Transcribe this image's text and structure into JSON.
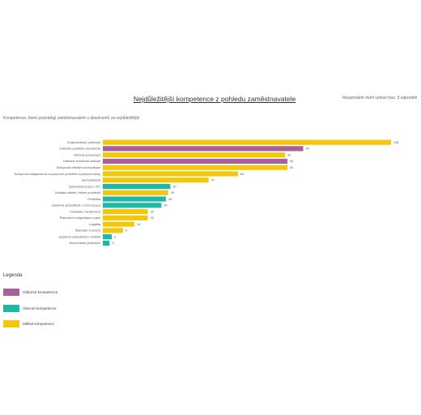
{
  "title": "Nejdůležitější kompetence z pohledu zaměstnavatele",
  "note": "Respondent mohl vybrat max. 3 odpovědi",
  "subtitle": "Kompetence, které postrádají zaměstnavatelé u absolventů za nejdůležitější",
  "legend": {
    "title": "Legenda",
    "items": [
      {
        "label": "Odborné kompetence",
        "color": "#a8609a"
      },
      {
        "label": "Obecné kompetence",
        "color": "#1fb8a7"
      },
      {
        "label": "Měkké kompetence",
        "color": "#f2c80f"
      }
    ]
  },
  "chart_data": {
    "type": "bar",
    "orientation": "horizontal",
    "title": "Nejdůležitější kompetence z pohledu zaměstnavatele",
    "categories": [
      "Zodpovědnost, pečlivost",
      "Odborné praktické dovednosti",
      "Týmová spolupráce",
      "Odborné teoretické znalosti",
      "Schopnost efektivní komunikace",
      "Schopnost adaptovat se na pracovní prostředí a pracovní úkoly",
      "Samostatnost",
      "Způsobilost práce s PC",
      "Zvládání zátěže, řešení problémů",
      "Flexibilita",
      "Jazyková způsobilost v cizím jazyce",
      "Kreativita, iniciativnost",
      "Plánování a organizace práce",
      "Loajalita",
      "Manuální zručnost",
      "Jazyková způsobilost v češtině",
      "Ekonomické povědomí"
    ],
    "values": [
      128,
      89,
      81,
      82,
      82,
      60,
      47,
      30,
      29,
      28,
      26,
      20,
      20,
      14,
      9,
      4,
      3
    ],
    "groups": [
      "Měkké kompetence",
      "Odborné kompetence",
      "Měkké kompetence",
      "Odborné kompetence",
      "Měkké kompetence",
      "Měkké kompetence",
      "Měkké kompetence",
      "Obecné kompetence",
      "Měkké kompetence",
      "Obecné kompetence",
      "Obecné kompetence",
      "Měkké kompetence",
      "Měkké kompetence",
      "Měkké kompetence",
      "Měkké kompetence",
      "Obecné kompetence",
      "Obecné kompetence"
    ],
    "colors": {
      "Odborné kompetence": "#a8609a",
      "Obecné kompetence": "#1fb8a7",
      "Měkké kompetence": "#f2c80f"
    },
    "xlim": [
      0,
      128
    ]
  }
}
